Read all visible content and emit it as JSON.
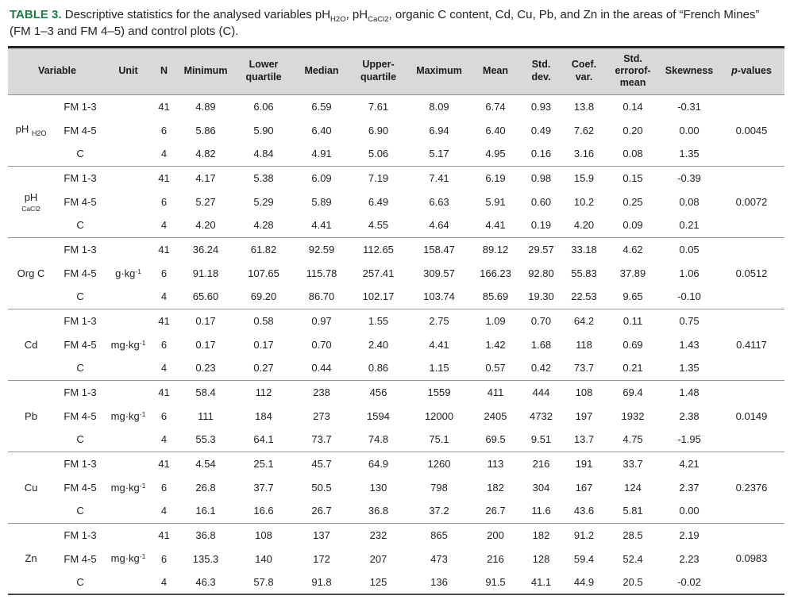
{
  "colors": {
    "caption_label_green": "#1e7b43",
    "header_bg": "#d9d9d9",
    "rule_dark": "#242424",
    "rule_light": "#979797"
  },
  "caption": {
    "label": "TABLE 3.",
    "part1": " Descriptive statistics for the analysed variables pH",
    "sub1": "H2O",
    "part2": ", pH",
    "sub2": "CaCl2",
    "part3": ", organic C content, Cd, Cu, Pb, and Zn in the areas of “French Mines” (FM 1–3 and FM 4–5) and control plots (C)."
  },
  "table": {
    "columns": [
      {
        "label": "Variable",
        "key": "variable",
        "colspan": 2
      },
      {
        "label": "Unit",
        "key": "unit"
      },
      {
        "label": "N",
        "key": "n"
      },
      {
        "label": "Minimum",
        "key": "minimum"
      },
      {
        "label": "Lower quartile",
        "key": "lower-quartile"
      },
      {
        "label": "Median",
        "key": "median"
      },
      {
        "label": "Upper-quartile",
        "key": "upper-quartile"
      },
      {
        "label": "Maximum",
        "key": "maximum"
      },
      {
        "label": "Mean",
        "key": "mean"
      },
      {
        "label": "Std. dev.",
        "key": "std-dev"
      },
      {
        "label": "Coef. var.",
        "key": "coef-var"
      },
      {
        "label": "Std. errorof-mean",
        "key": "std-error-of-mean"
      },
      {
        "label": "Skewness",
        "key": "skewness"
      },
      {
        "label": "p-values",
        "key": "p-values",
        "italic_first": true
      }
    ],
    "value_keys": [
      "minimum",
      "lower-quartile",
      "median",
      "upper-quartile",
      "maximum",
      "mean",
      "std-dev",
      "coef-var",
      "std-error-of-mean",
      "skewness"
    ],
    "groups": [
      {
        "variable": "pH",
        "variable_sub": "H2O",
        "sub_style": "inline",
        "unit": "",
        "p_value": "0.0045",
        "rows": [
          {
            "site": "FM 1-3",
            "n": "41",
            "values": [
              "4.89",
              "6.06",
              "6.59",
              "7.61",
              "8.09",
              "6.74",
              "0.93",
              "13.8",
              "0.14",
              "-0.31"
            ]
          },
          {
            "site": "FM 4-5",
            "n": "6",
            "values": [
              "5.86",
              "5.90",
              "6.40",
              "6.90",
              "6.94",
              "6.40",
              "0.49",
              "7.62",
              "0.20",
              "0.00"
            ]
          },
          {
            "site": "C",
            "n": "4",
            "values": [
              "4.82",
              "4.84",
              "4.91",
              "5.06",
              "5.17",
              "4.95",
              "0.16",
              "3.16",
              "0.08",
              "1.35"
            ]
          }
        ]
      },
      {
        "variable": "pH",
        "variable_sub": "CaCl2",
        "sub_style": "below",
        "unit": "",
        "p_value": "0.0072",
        "rows": [
          {
            "site": "FM 1-3",
            "n": "41",
            "values": [
              "4.17",
              "5.38",
              "6.09",
              "7.19",
              "7.41",
              "6.19",
              "0.98",
              "15.9",
              "0.15",
              "-0.39"
            ]
          },
          {
            "site": "FM 4-5",
            "n": "6",
            "values": [
              "5.27",
              "5.29",
              "5.89",
              "6.49",
              "6.63",
              "5.91",
              "0.60",
              "10.2",
              "0.25",
              "0.08"
            ]
          },
          {
            "site": "C",
            "n": "4",
            "values": [
              "4.20",
              "4.28",
              "4.41",
              "4.55",
              "4.64",
              "4.41",
              "0.19",
              "4.20",
              "0.09",
              "0.21"
            ]
          }
        ]
      },
      {
        "variable": "Org C",
        "variable_sub": "",
        "sub_style": "none",
        "unit": "g·kg",
        "unit_sup": "-1",
        "p_value": "0.0512",
        "rows": [
          {
            "site": "FM 1-3",
            "n": "41",
            "values": [
              "36.24",
              "61.82",
              "92.59",
              "112.65",
              "158.47",
              "89.12",
              "29.57",
              "33.18",
              "4.62",
              "0.05"
            ]
          },
          {
            "site": "FM 4-5",
            "n": "6",
            "values": [
              "91.18",
              "107.65",
              "115.78",
              "257.41",
              "309.57",
              "166.23",
              "92.80",
              "55.83",
              "37.89",
              "1.06"
            ]
          },
          {
            "site": "C",
            "n": "4",
            "values": [
              "65.60",
              "69.20",
              "86.70",
              "102.17",
              "103.74",
              "85.69",
              "19.30",
              "22.53",
              "9.65",
              "-0.10"
            ]
          }
        ]
      },
      {
        "variable": "Cd",
        "variable_sub": "",
        "sub_style": "none",
        "unit": "mg·kg",
        "unit_sup": "-1",
        "p_value": "0.4117",
        "rows": [
          {
            "site": "FM 1-3",
            "n": "41",
            "values": [
              "0.17",
              "0.58",
              "0.97",
              "1.55",
              "2.75",
              "1.09",
              "0.70",
              "64.2",
              "0.11",
              "0.75"
            ]
          },
          {
            "site": "FM 4-5",
            "n": "6",
            "values": [
              "0.17",
              "0.17",
              "0.70",
              "2.40",
              "4.41",
              "1.42",
              "1.68",
              "118",
              "0.69",
              "1.43"
            ]
          },
          {
            "site": "C",
            "n": "4",
            "values": [
              "0.23",
              "0.27",
              "0.44",
              "0.86",
              "1.15",
              "0.57",
              "0.42",
              "73.7",
              "0.21",
              "1.35"
            ]
          }
        ]
      },
      {
        "variable": "Pb",
        "variable_sub": "",
        "sub_style": "none",
        "unit": "mg·kg",
        "unit_sup": "-1",
        "p_value": "0.0149",
        "rows": [
          {
            "site": "FM 1-3",
            "n": "41",
            "values": [
              "58.4",
              "112",
              "238",
              "456",
              "1559",
              "411",
              "444",
              "108",
              "69.4",
              "1.48"
            ]
          },
          {
            "site": "FM 4-5",
            "n": "6",
            "values": [
              "111",
              "184",
              "273",
              "1594",
              "12000",
              "2405",
              "4732",
              "197",
              "1932",
              "2.38"
            ]
          },
          {
            "site": "C",
            "n": "4",
            "values": [
              "55.3",
              "64.1",
              "73.7",
              "74.8",
              "75.1",
              "69.5",
              "9.51",
              "13.7",
              "4.75",
              "-1.95"
            ]
          }
        ]
      },
      {
        "variable": "Cu",
        "variable_sub": "",
        "sub_style": "none",
        "unit": "mg·kg",
        "unit_sup": "-1",
        "p_value": "0.2376",
        "rows": [
          {
            "site": "FM 1-3",
            "n": "41",
            "values": [
              "4.54",
              "25.1",
              "45.7",
              "64.9",
              "1260",
              "113",
              "216",
              "191",
              "33.7",
              "4.21"
            ]
          },
          {
            "site": "FM 4-5",
            "n": "6",
            "values": [
              "26.8",
              "37.7",
              "50.5",
              "130",
              "798",
              "182",
              "304",
              "167",
              "124",
              "2.37"
            ]
          },
          {
            "site": "C",
            "n": "4",
            "values": [
              "16.1",
              "16.6",
              "26.7",
              "36.8",
              "37.2",
              "26.7",
              "11.6",
              "43.6",
              "5.81",
              "0.00"
            ]
          }
        ]
      },
      {
        "variable": "Zn",
        "variable_sub": "",
        "sub_style": "none",
        "unit": "mg·kg",
        "unit_sup": "-1",
        "p_value": "0.0983",
        "rows": [
          {
            "site": "FM 1-3",
            "n": "41",
            "values": [
              "36.8",
              "108",
              "137",
              "232",
              "865",
              "200",
              "182",
              "91.2",
              "28.5",
              "2.19"
            ]
          },
          {
            "site": "FM 4-5",
            "n": "6",
            "values": [
              "135.3",
              "140",
              "172",
              "207",
              "473",
              "216",
              "128",
              "59.4",
              "52.4",
              "2.23"
            ]
          },
          {
            "site": "C",
            "n": "4",
            "values": [
              "46.3",
              "57.8",
              "91.8",
              "125",
              "136",
              "91.5",
              "41.1",
              "44.9",
              "20.5",
              "-0.02"
            ]
          }
        ]
      }
    ]
  }
}
